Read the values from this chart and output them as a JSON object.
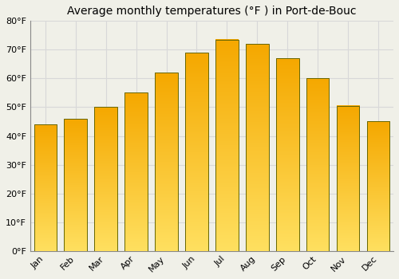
{
  "months": [
    "Jan",
    "Feb",
    "Mar",
    "Apr",
    "May",
    "Jun",
    "Jul",
    "Aug",
    "Sep",
    "Oct",
    "Nov",
    "Dec"
  ],
  "values": [
    44,
    46,
    50,
    55,
    62,
    69,
    73.5,
    72,
    67,
    60,
    50.5,
    45
  ],
  "bar_color_bottom": "#F5A800",
  "bar_color_top": "#FFE060",
  "bar_edge_color": "#888800",
  "title": "Average monthly temperatures (°F ) in Port-de-Bouc",
  "ylim": [
    0,
    80
  ],
  "yticks": [
    0,
    10,
    20,
    30,
    40,
    50,
    60,
    70,
    80
  ],
  "ytick_labels": [
    "0°F",
    "10°F",
    "20°F",
    "30°F",
    "40°F",
    "50°F",
    "60°F",
    "70°F",
    "80°F"
  ],
  "background_color": "#f0f0e8",
  "grid_color": "#d8d8d8",
  "title_fontsize": 10,
  "tick_fontsize": 8,
  "bar_width": 0.75
}
